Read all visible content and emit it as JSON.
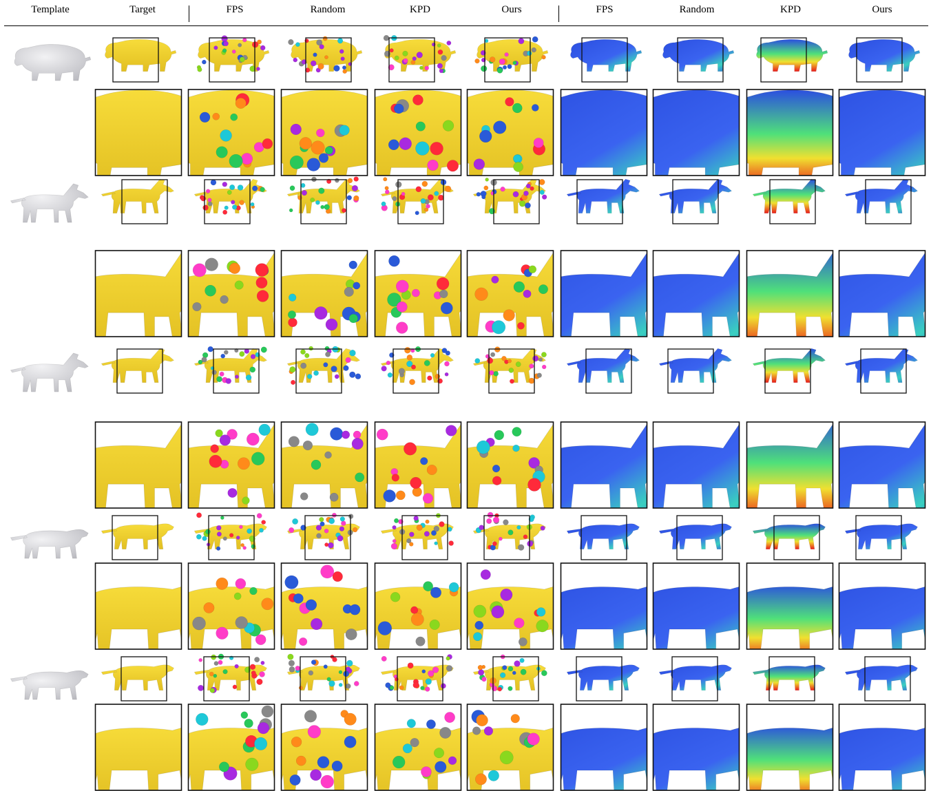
{
  "headers": {
    "template": "Template",
    "target": "Target",
    "left_group": [
      "FPS",
      "Random",
      "KPD",
      "Ours"
    ],
    "right_group": [
      "FPS",
      "Random",
      "KPD",
      "Ours"
    ]
  },
  "rows": [
    {
      "animal": "hippo",
      "has_keypoints_right": true
    },
    {
      "animal": "horse",
      "has_keypoints_right": true
    },
    {
      "animal": "horse",
      "has_keypoints_right": true
    },
    {
      "animal": "lion",
      "has_keypoints_right": true
    },
    {
      "animal": "lion",
      "has_keypoints_right": true
    }
  ],
  "colors": {
    "mesh_yellow": "#f1d230",
    "mesh_gray": "#d9d9dd",
    "heat_blue": "#2b4fe0",
    "heat_green": "#4fe07a",
    "heat_red": "#e81a1a"
  },
  "keypoint_palette": [
    "#ff2a3a",
    "#28c85a",
    "#2a5ad8",
    "#a82ae0",
    "#ff8a1a",
    "#1ec8d8",
    "#ff3cc8",
    "#8ad81e",
    "#888888"
  ]
}
